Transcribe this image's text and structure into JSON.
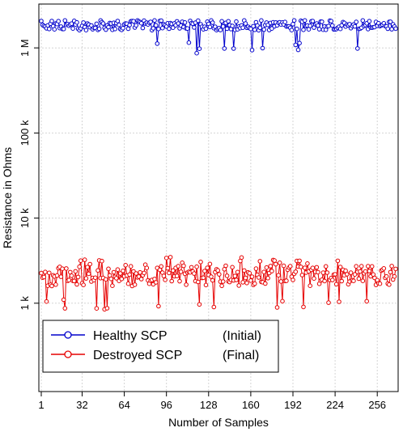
{
  "chart_data": {
    "type": "line",
    "title": "",
    "xlabel": "Number of Samples",
    "ylabel": "Resistance in Ohms",
    "x_ticks": [
      1,
      32,
      64,
      96,
      128,
      160,
      192,
      224,
      256
    ],
    "x_tick_labels": [
      "1",
      "32",
      "64",
      "96",
      "128",
      "160",
      "192",
      "224",
      "256"
    ],
    "xlim": [
      1,
      270
    ],
    "y_scale": "log",
    "y_ticks": [
      1000,
      10000,
      100000,
      1000000
    ],
    "y_tick_labels": [
      "1 k",
      "10 k",
      "100 k",
      "1 M"
    ],
    "ylim": [
      100,
      3000000
    ],
    "grid": true,
    "legend": {
      "position": "bottom-left",
      "entries": [
        {
          "name": "Healthy SCP",
          "note": "(Initial)",
          "color": "#0000cc"
        },
        {
          "name": "Destroyed SCP",
          "note": "(Final)",
          "color": "#e60000"
        }
      ]
    },
    "series": [
      {
        "name": "Healthy SCP",
        "note": "(Initial)",
        "color": "#0000cc",
        "marker": "circle",
        "x": [
          1,
          270
        ],
        "values": [
          1800000,
          1800000
        ],
        "range": [
          850000,
          2100000
        ]
      },
      {
        "name": "Destroyed SCP",
        "note": "(Final)",
        "color": "#e60000",
        "marker": "circle",
        "x": [
          1,
          270
        ],
        "values": [
          2100,
          2100
        ],
        "range": [
          780,
          3500
        ]
      }
    ]
  }
}
